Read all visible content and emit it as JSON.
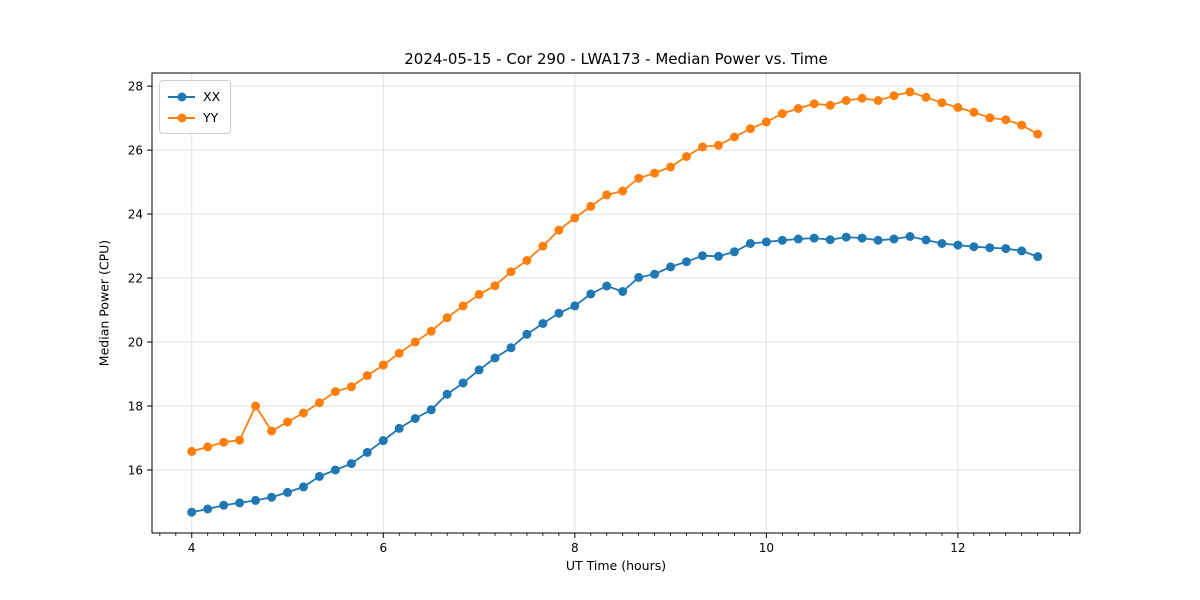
{
  "chart_data": {
    "type": "line",
    "title": "2024-05-15 - Cor 290 - LWA173 - Median Power vs. Time",
    "xlabel": "UT Time (hours)",
    "ylabel": "Median Power (CPU)",
    "xlim": [
      3.585,
      13.275
    ],
    "ylim": [
      14.03,
      28.41
    ],
    "xticks": [
      4,
      6,
      8,
      10,
      12
    ],
    "yticks": [
      16,
      18,
      20,
      22,
      24,
      26,
      28
    ],
    "x_minor_step": 0.1666667,
    "grid": true,
    "grid_color": "#e0e0e0",
    "legend_position": "upper left",
    "x_start": 4.0,
    "x_step": 0.1666667,
    "series": [
      {
        "name": "XX",
        "color": "#1f77b4",
        "values": [
          14.68,
          14.78,
          14.9,
          14.97,
          15.05,
          15.15,
          15.3,
          15.47,
          15.8,
          16.0,
          16.2,
          16.55,
          16.92,
          17.3,
          17.61,
          17.88,
          18.37,
          18.72,
          19.13,
          19.5,
          19.82,
          20.24,
          20.58,
          20.9,
          21.13,
          21.5,
          21.75,
          21.58,
          22.02,
          22.12,
          22.35,
          22.51,
          22.7,
          22.68,
          22.82,
          23.08,
          23.13,
          23.18,
          23.22,
          23.25,
          23.2,
          23.28,
          23.25,
          23.18,
          23.22,
          23.3,
          23.19,
          23.08,
          23.03,
          22.98,
          22.95,
          22.92,
          22.85,
          22.67
        ]
      },
      {
        "name": "YY",
        "color": "#ff7f0e",
        "values": [
          16.58,
          16.72,
          16.87,
          16.93,
          18.0,
          17.22,
          17.5,
          17.78,
          18.1,
          18.45,
          18.6,
          18.95,
          19.28,
          19.65,
          20.0,
          20.34,
          20.76,
          21.13,
          21.49,
          21.76,
          22.2,
          22.55,
          23.0,
          23.5,
          23.88,
          24.24,
          24.6,
          24.72,
          25.12,
          25.28,
          25.47,
          25.8,
          26.1,
          26.15,
          26.41,
          26.67,
          26.88,
          27.14,
          27.3,
          27.45,
          27.4,
          27.55,
          27.62,
          27.55,
          27.7,
          27.82,
          27.65,
          27.48,
          27.33,
          27.18,
          27.01,
          26.95,
          26.78,
          26.5
        ]
      }
    ]
  }
}
